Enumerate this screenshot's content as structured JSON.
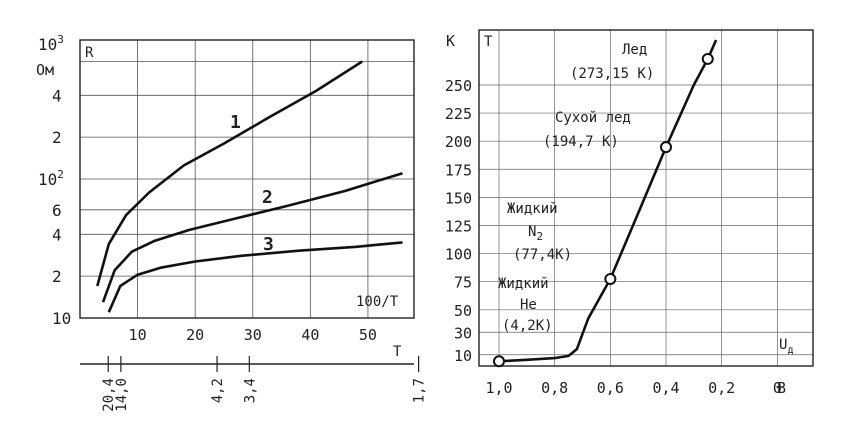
{
  "chart_data": [
    {
      "type": "line",
      "y_scale": "log",
      "x_scale": "reciprocal",
      "grid": true,
      "xlim": [
        0,
        58
      ],
      "ylim": [
        10,
        1000
      ],
      "ylabel_top": "10",
      "ylabel_top_exp": "3",
      "yunit": "Ом",
      "series_axis_label": "R",
      "y_ticks": [
        {
          "value": 10,
          "label": "10",
          "exp": ""
        },
        {
          "value": 20,
          "label": "2",
          "exp": ""
        },
        {
          "value": 40,
          "label": "4",
          "exp": ""
        },
        {
          "value": 60,
          "label": "6",
          "exp": ""
        },
        {
          "value": 100,
          "label": "10",
          "exp": "2"
        },
        {
          "value": 200,
          "label": "2",
          "exp": ""
        },
        {
          "value": 400,
          "label": "4",
          "exp": ""
        }
      ],
      "x_ticks": [
        {
          "value": 10,
          "label": "10"
        },
        {
          "value": 20,
          "label": "20"
        },
        {
          "value": 30,
          "label": "30"
        },
        {
          "value": 40,
          "label": "40"
        },
        {
          "value": 50,
          "label": "50"
        }
      ],
      "x_label": "100/T",
      "t_axis_label": "T",
      "t_ticks": [
        {
          "value": 4.9,
          "label": "20,4"
        },
        {
          "value": 7.1,
          "label": "14,0"
        },
        {
          "value": 23.8,
          "label": "4,2"
        },
        {
          "value": 29.4,
          "label": "3,4"
        },
        {
          "value": 58.8,
          "label": "1,7"
        }
      ],
      "series": [
        {
          "name": "1",
          "x": [
            3,
            5,
            8,
            12,
            18,
            25,
            33,
            41,
            49
          ],
          "y": [
            17,
            34,
            55,
            80,
            125,
            180,
            280,
            430,
            700
          ]
        },
        {
          "name": "2",
          "x": [
            4,
            6,
            9,
            13,
            19,
            27,
            36,
            46,
            56
          ],
          "y": [
            13,
            22,
            30,
            36,
            43,
            52,
            64,
            82,
            110
          ]
        },
        {
          "name": "3",
          "x": [
            5,
            7,
            10,
            14,
            20,
            28,
            38,
            48,
            56
          ],
          "y": [
            11,
            17,
            20.5,
            23,
            25.5,
            28,
            30.5,
            32.5,
            35
          ]
        }
      ]
    },
    {
      "type": "line",
      "grid": true,
      "xlim": [
        1.0,
        -0.2
      ],
      "ylim": [
        0,
        290
      ],
      "ylabel": "K",
      "series_axis_label": "T",
      "x_axis_label": "U",
      "x_axis_label_sub": "д",
      "x_unit": "В",
      "y_ticks": [
        {
          "value": 10,
          "label": "10"
        },
        {
          "value": 30,
          "label": "30"
        },
        {
          "value": 50,
          "label": "50"
        },
        {
          "value": 75,
          "label": "75"
        },
        {
          "value": 100,
          "label": "100"
        },
        {
          "value": 125,
          "label": "125"
        },
        {
          "value": 150,
          "label": "150"
        },
        {
          "value": 175,
          "label": "175"
        },
        {
          "value": 200,
          "label": "200"
        },
        {
          "value": 225,
          "label": "225"
        },
        {
          "value": 250,
          "label": "250"
        }
      ],
      "x_ticks": [
        {
          "value": 1.0,
          "label": "1,0"
        },
        {
          "value": 0.8,
          "label": "0,8"
        },
        {
          "value": 0.6,
          "label": "0,6"
        },
        {
          "value": 0.4,
          "label": "0,4"
        },
        {
          "value": 0.2,
          "label": "0,2"
        },
        {
          "value": 0.0,
          "label": "0"
        }
      ],
      "curve": {
        "x": [
          1.0,
          0.9,
          0.8,
          0.75,
          0.72,
          0.68,
          0.6,
          0.5,
          0.4,
          0.3,
          0.25,
          0.22
        ],
        "y": [
          4.2,
          5.5,
          7,
          9,
          15,
          42,
          77.4,
          136,
          194.7,
          250,
          273.15,
          290
        ]
      },
      "points": [
        {
          "x": 1.0,
          "y": 4.2
        },
        {
          "x": 0.6,
          "y": 77.4
        },
        {
          "x": 0.4,
          "y": 194.7
        },
        {
          "x": 0.25,
          "y": 273.15
        }
      ],
      "annotations": {
        "ice": "Лед",
        "ice_temp": "(273,15 K)",
        "dry_ice": "Сухой лед",
        "dry_ice_temp": "(194,7 K)",
        "n2": "Жидкий",
        "n2_formula": "N",
        "n2_sub": "2",
        "n2_temp": "(77,4K)",
        "he": "Жидкий",
        "he_formula": "He",
        "he_temp": "(4,2K)"
      }
    }
  ]
}
